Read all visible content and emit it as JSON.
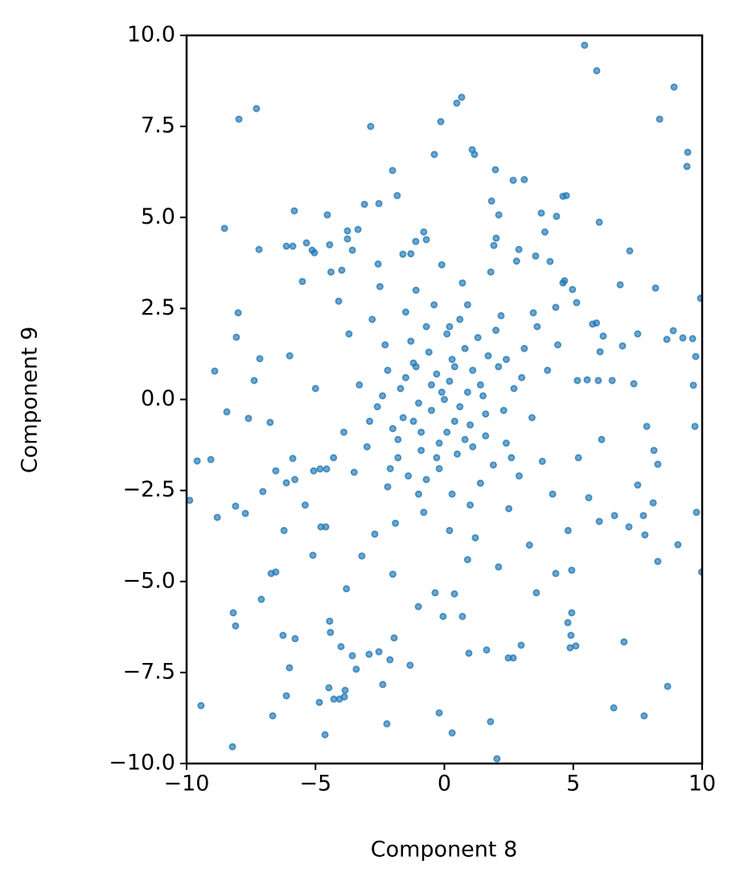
{
  "chart_data": {
    "type": "scatter",
    "xlabel": "Component 8",
    "ylabel": "Component 9",
    "color": "#1f77b4",
    "xlim": [
      -10,
      10
    ],
    "ylim": [
      -10,
      10
    ],
    "xticks": [
      {
        "value": -10,
        "label": "−10"
      },
      {
        "value": -5,
        "label": "−5"
      },
      0,
      5,
      10
    ],
    "yticks": [
      {
        "value": -10,
        "label": "−10.0"
      },
      {
        "value": -7.5,
        "label": "−7.5"
      },
      {
        "value": -5,
        "label": "−5.0"
      },
      {
        "value": -2.5,
        "label": "−2.5"
      },
      {
        "value": 0,
        "label": "0.0"
      },
      {
        "value": 2.5,
        "label": "2.5"
      },
      {
        "value": 5,
        "label": "5.0"
      },
      {
        "value": 7.5,
        "label": "7.5"
      },
      {
        "value": 10,
        "label": "10.0"
      }
    ],
    "x": [
      5.44,
      5.91,
      8.91,
      -7.97,
      -7.29,
      -2.86,
      0.67,
      0.48,
      8.35,
      -0.14,
      9.44,
      9.41,
      -0.39,
      1.08,
      1.17,
      -2.01,
      1.98,
      2.67,
      3.1,
      -1.83,
      1.83,
      -5.82,
      -4.54,
      -2.54,
      -3.1,
      2.11,
      3.76,
      4.6,
      4.73,
      4.35,
      6.01,
      -8.53,
      -7.19,
      -6.13,
      -5.88,
      -5.35,
      -5.13,
      -5.04,
      -4.45,
      -3.76,
      -3.35,
      -3.76,
      -3.57,
      7.19,
      2.01,
      1.92,
      2.89,
      3.54,
      4.1,
      -1.61,
      -1.11,
      -0.7,
      -3.98,
      -2.57,
      -5.51,
      -8.0,
      -7.16,
      -8.07,
      -8.91,
      -7.38,
      -8.44,
      -7.6,
      -6.76,
      -9.59,
      -9.06,
      -9.88,
      -8.81,
      -8.1,
      -7.72,
      -7.04,
      -6.54,
      -6.13,
      -5.88,
      -6.22,
      -5.07,
      -4.82,
      -4.57,
      -5.1,
      -4.79,
      -6.72,
      -6.54,
      -7.1,
      -8.19,
      -8.1,
      -6.26,
      -5.79,
      -6.01,
      -4.45,
      -4.42,
      -4.01,
      -3.57,
      -3.42,
      -2.92,
      -2.54,
      -2.11,
      -1.95,
      -1.33,
      -2.39,
      -4.48,
      -3.85,
      -3.88,
      -4.07,
      -4.29,
      -4.85,
      -6.13,
      -6.66,
      -9.44,
      -8.22,
      -4.63,
      -2.23,
      -0.2,
      0.3,
      2.04,
      1.79,
      0.95,
      1.64,
      2.48,
      2.67,
      2.98,
      4.88,
      5.1,
      4.91,
      4.79,
      4.94,
      4.94,
      4.32,
      3.57,
      0.7,
      -0.05,
      -1.01,
      -0.36,
      0.39,
      6.57,
      7.75,
      8.66,
      6.97,
      8.28,
      9.06,
      9.98,
      9.78,
      8.1,
      7.78,
      7.72,
      7.16,
      6.6,
      6.01,
      7.5,
      8.28,
      8.13,
      7.85,
      9.72,
      9.66,
      9.75,
      9.63,
      9.25,
      8.88,
      8.63,
      9.94,
      8.19,
      6.82,
      7.5,
      6.91,
      6.51,
      7.35,
      5.97,
      5.54,
      5.16,
      5.75,
      6.16,
      6.04,
      5.13,
      4.66,
      4.97,
      4.32,
      3.45,
      0.2,
      -0.5,
      1.1,
      -1.2,
      0.8,
      -0.9,
      1.6,
      -1.7,
      0.1,
      -0.2,
      2.1,
      -2.0,
      1.3,
      -1.4,
      0.6,
      -0.7,
      2.4,
      -2.3,
      1.9,
      -1.8,
      0.4,
      -0.3,
      0.9,
      -1.0,
      0.0,
      0.5,
      -0.6,
      1.5,
      -1.5,
      2.7,
      -2.6,
      0.3,
      -0.4,
      2.9,
      -2.8,
      3.1,
      -3.0,
      1.0,
      -1.1,
      2.2,
      -2.2,
      3.4,
      -3.3,
      0.7,
      -0.8,
      2.5,
      -2.5,
      3.6,
      -3.5,
      1.8,
      -1.9,
      3.8,
      -3.7,
      0.2,
      -0.1,
      4.0,
      -3.9,
      1.2,
      -1.3,
      2.8,
      -2.7,
      4.2,
      -4.1,
      4.4,
      -4.3,
      1.4,
      -1.6,
      0.8,
      -0.9,
      0.3,
      -0.2,
      1.7,
      -1.8,
      2.3,
      -2.4,
      0.6,
      -0.5,
      1.0,
      -1.1,
      0.1,
      -0.1,
      2.0,
      -2.1,
      1.4,
      -1.5,
      0.9,
      -1.0,
      3.0,
      -2.9,
      2.6,
      -1.2,
      0.4,
      -0.7,
      1.1,
      -1.3,
      0.2,
      -0.3,
      2.4,
      -2.2,
      1.6,
      5.2,
      -5.0,
      4.8,
      -4.6,
      3.3,
      -3.2,
      4.6,
      -4.4,
      2.1,
      -2.0,
      5.6,
      -5.4,
      6.1,
      -6.0,
      3.9,
      -3.8,
      0.9,
      -0.8,
      5.9,
      -5.8
    ],
    "y": [
      9.73,
      9.03,
      8.58,
      7.7,
      7.99,
      7.5,
      8.3,
      8.14,
      7.7,
      7.63,
      6.79,
      6.4,
      6.73,
      6.86,
      6.73,
      6.29,
      6.31,
      6.02,
      6.04,
      5.6,
      5.45,
      5.18,
      5.07,
      5.38,
      5.36,
      5.07,
      5.12,
      5.58,
      5.6,
      5.03,
      4.87,
      4.7,
      4.12,
      4.21,
      4.21,
      4.3,
      4.1,
      4.03,
      4.25,
      4.63,
      4.67,
      4.41,
      4.1,
      4.08,
      4.43,
      4.23,
      4.12,
      3.94,
      3.79,
      3.99,
      4.34,
      4.39,
      3.55,
      3.72,
      3.24,
      2.38,
      1.12,
      1.71,
      0.78,
      0.52,
      -0.34,
      -0.52,
      -0.63,
      -1.69,
      -1.65,
      -2.77,
      -3.24,
      -2.93,
      -3.13,
      -2.53,
      -1.96,
      -2.29,
      -1.62,
      -3.6,
      -1.96,
      -1.91,
      -1.91,
      -4.28,
      -3.5,
      -4.78,
      -4.74,
      -5.49,
      -5.86,
      -6.22,
      -6.48,
      -6.57,
      -7.37,
      -6.09,
      -6.4,
      -6.79,
      -7.04,
      -7.41,
      -7.0,
      -6.93,
      -7.15,
      -6.55,
      -7.3,
      -7.83,
      -7.92,
      -7.99,
      -8.17,
      -8.23,
      -8.23,
      -8.32,
      -8.14,
      -8.69,
      -8.41,
      -9.54,
      -9.21,
      -8.91,
      -8.61,
      -9.16,
      -9.87,
      -8.85,
      -6.97,
      -6.88,
      -7.1,
      -7.1,
      -6.75,
      -6.82,
      -6.77,
      -6.48,
      -6.13,
      -5.86,
      -4.69,
      -4.78,
      -5.31,
      -5.96,
      -5.96,
      -5.69,
      -5.31,
      -5.34,
      -8.47,
      -8.69,
      -7.88,
      -6.66,
      -4.45,
      -3.99,
      -4.74,
      -3.1,
      -2.84,
      -3.72,
      -3.19,
      -3.5,
      -3.19,
      -3.35,
      -2.35,
      -1.78,
      -1.4,
      -0.74,
      -0.74,
      0.39,
      1.18,
      1.67,
      1.69,
      1.89,
      1.65,
      2.78,
      3.06,
      3.15,
      1.8,
      1.47,
      0.52,
      0.43,
      0.52,
      0.54,
      0.52,
      2.07,
      1.74,
      1.31,
      2.66,
      3.26,
      3.02,
      2.53,
      2.38,
      0.5,
      -0.3,
      0.8,
      1.0,
      -1.1,
      -1.4,
      -0.4,
      0.3,
      1.8,
      -1.9,
      0.9,
      -0.8,
      1.7,
      -2.1,
      2.2,
      2.0,
      -1.2,
      1.5,
      -1.8,
      -1.6,
      -0.6,
      0.7,
      0.2,
      -0.1,
      0.0,
      -1.5,
      1.3,
      0.1,
      0.6,
      0.3,
      -0.2,
      -2.6,
      2.6,
      -2.1,
      2.2,
      1.4,
      -1.3,
      -2.9,
      3.0,
      2.3,
      -2.4,
      -0.5,
      0.4,
      3.2,
      -3.1,
      -3.0,
      3.1,
      2.0,
      -2.0,
      3.5,
      -3.4,
      -1.7,
      1.8,
      -3.6,
      3.7,
      0.8,
      -0.9,
      -3.8,
      4.0,
      3.8,
      -3.7,
      -2.6,
      2.7,
      1.5,
      -1.6,
      0.4,
      -0.5,
      1.4,
      -0.9,
      1.1,
      -1.2,
      1.2,
      -1.1,
      -0.3,
      0.1,
      -0.2,
      0.4,
      -0.7,
      0.9,
      -0.9,
      0.2,
      1.9,
      -1.9,
      -2.3,
      2.4,
      2.6,
      -2.6,
      0.6,
      -0.6,
      -1.6,
      -0.6,
      0.9,
      -2.2,
      -1.3,
      1.6,
      2.0,
      -1.6,
      1.1,
      0.8,
      -1.0,
      -1.6,
      0.3,
      -3.6,
      -3.5,
      -4.0,
      -4.3,
      3.2,
      3.5,
      -4.6,
      -4.8,
      -2.7,
      -2.9,
      -1.1,
      1.2,
      4.6,
      -5.2,
      -4.4,
      4.6,
      2.1,
      -2.2
    ]
  }
}
